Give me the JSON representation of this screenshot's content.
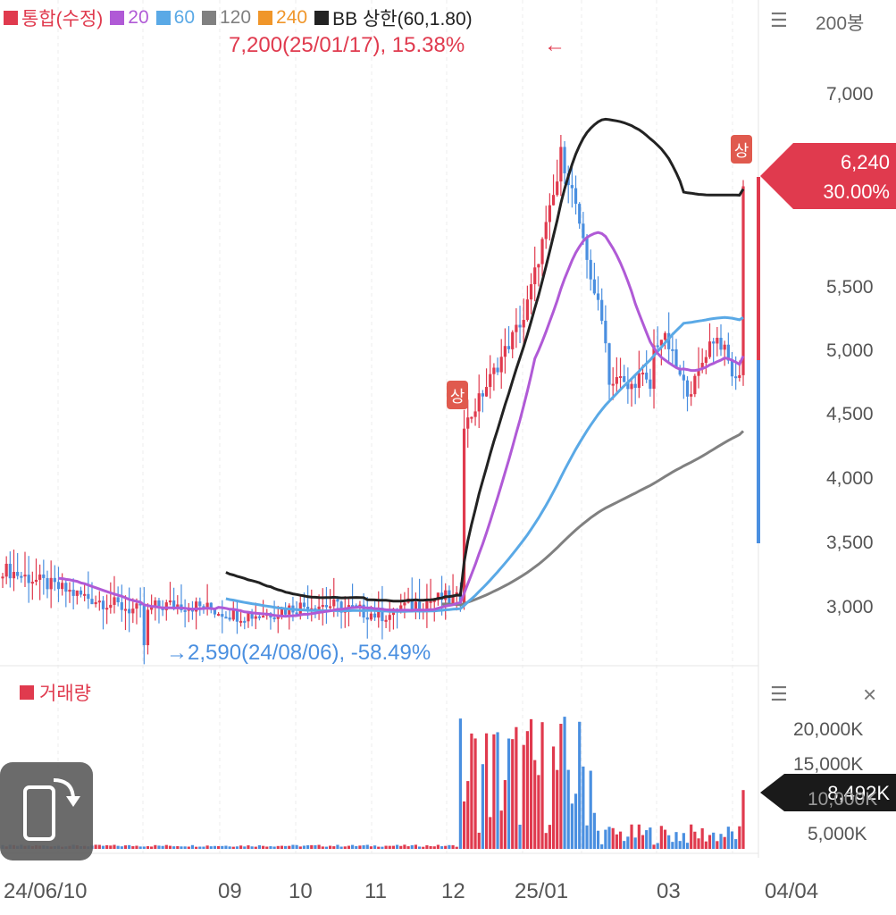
{
  "legend": {
    "items": [
      {
        "label": "통합(수정)",
        "color": "#e03a4e"
      },
      {
        "label": "20",
        "color": "#b05ad6"
      },
      {
        "label": "60",
        "color": "#5aa9e6"
      },
      {
        "label": "120",
        "color": "#808080"
      },
      {
        "label": "240",
        "color": "#f0962a"
      },
      {
        "label": "BB 상한(60,1.80)",
        "color": "#222222"
      }
    ]
  },
  "period_label": "200봉",
  "annotations": {
    "high": "7,200(25/01/17), 15.38%",
    "high_arrow": "←",
    "low": "→2,590(24/08/06), -58.49%",
    "limit_up_badge": "상"
  },
  "price_axis": {
    "ticks": [
      "7,000",
      "5,500",
      "5,000",
      "4,500",
      "4,000",
      "3,500",
      "3,000"
    ]
  },
  "current_price": {
    "price": "6,240",
    "change": "30.00%"
  },
  "volume": {
    "title": "거래량",
    "ticks": [
      "20,000K",
      "15,000K",
      "10,000K",
      "5,000K"
    ],
    "current": "8,492K",
    "close_symbol": "×"
  },
  "menu_symbol": "☰",
  "date_axis": [
    "24/06/10",
    "09",
    "10",
    "11",
    "12",
    "25/01",
    "03",
    "04/04"
  ],
  "colors": {
    "up": "#e03a4e",
    "down": "#4a8fe0",
    "ma20": "#b05ad6",
    "ma60": "#5aa9e6",
    "ma120": "#808080",
    "bb": "#222222"
  },
  "chart_data": {
    "type": "candlestick",
    "y_range": [
      2590,
      7200
    ],
    "high_value": 7200,
    "low_value": 2590,
    "last_close": 6240,
    "last_volume_k": 8492,
    "volume_range_k": [
      0,
      20000
    ]
  }
}
